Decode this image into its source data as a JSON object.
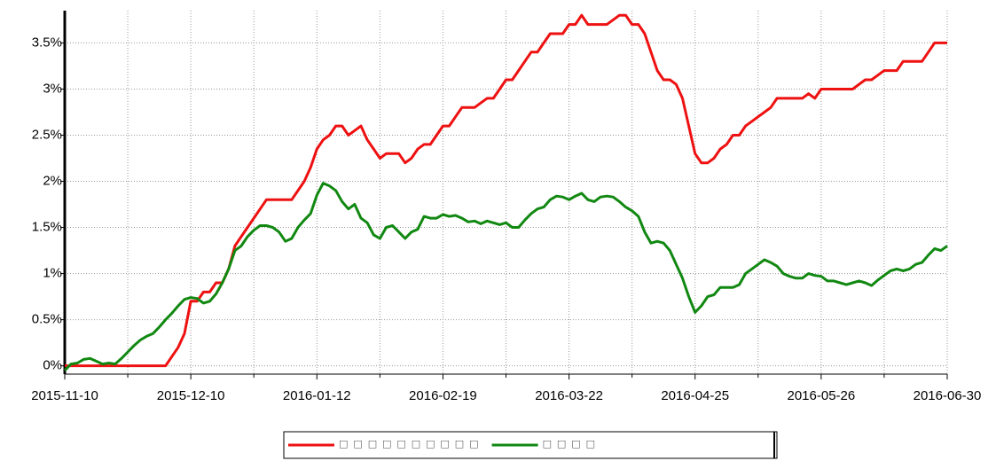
{
  "chart_data": {
    "type": "line",
    "categories": [
      "2015-11-10",
      null,
      null,
      null,
      null,
      null,
      null,
      null,
      null,
      null,
      null,
      null,
      null,
      null,
      null,
      null,
      null,
      null,
      null,
      null,
      "2015-12-10",
      null,
      null,
      null,
      null,
      null,
      null,
      null,
      null,
      null,
      null,
      null,
      null,
      null,
      null,
      null,
      null,
      null,
      null,
      null,
      "2016-01-12",
      null,
      null,
      null,
      null,
      null,
      null,
      null,
      null,
      null,
      null,
      null,
      null,
      null,
      null,
      null,
      null,
      null,
      null,
      null,
      "2016-02-19",
      null,
      null,
      null,
      null,
      null,
      null,
      null,
      null,
      null,
      null,
      null,
      null,
      null,
      null,
      null,
      null,
      null,
      null,
      null,
      "2016-03-22",
      null,
      null,
      null,
      null,
      null,
      null,
      null,
      null,
      null,
      null,
      null,
      null,
      null,
      null,
      null,
      null,
      null,
      null,
      null,
      "2016-04-25",
      null,
      null,
      null,
      null,
      null,
      null,
      null,
      null,
      null,
      null,
      null,
      null,
      null,
      null,
      null,
      null,
      null,
      null,
      null,
      "2016-05-26",
      null,
      null,
      null,
      null,
      null,
      null,
      null,
      null,
      null,
      null,
      null,
      null,
      null,
      null,
      null,
      null,
      null,
      null,
      null,
      "2016-06-30"
    ],
    "series": [
      {
        "name": "□ □ □ □ □ □ □ □ □ □",
        "color": "#ee1111",
        "values": [
          0,
          0,
          0,
          0,
          0,
          0,
          0,
          0,
          0,
          0,
          0,
          0,
          0,
          0,
          0,
          0,
          0,
          0.1,
          0.2,
          0.35,
          0.7,
          0.7,
          0.8,
          0.8,
          0.9,
          0.9,
          1.05,
          1.3,
          1.4,
          1.5,
          1.6,
          1.7,
          1.8,
          1.8,
          1.8,
          1.8,
          1.8,
          1.9,
          2.0,
          2.15,
          2.35,
          2.45,
          2.5,
          2.6,
          2.6,
          2.5,
          2.55,
          2.6,
          2.45,
          2.35,
          2.25,
          2.3,
          2.3,
          2.3,
          2.2,
          2.25,
          2.35,
          2.4,
          2.4,
          2.5,
          2.6,
          2.6,
          2.7,
          2.8,
          2.8,
          2.8,
          2.85,
          2.9,
          2.9,
          3.0,
          3.1,
          3.1,
          3.2,
          3.3,
          3.4,
          3.4,
          3.5,
          3.6,
          3.6,
          3.6,
          3.7,
          3.7,
          3.8,
          3.7,
          3.7,
          3.7,
          3.7,
          3.75,
          3.8,
          3.8,
          3.7,
          3.7,
          3.6,
          3.4,
          3.2,
          3.1,
          3.1,
          3.05,
          2.9,
          2.6,
          2.3,
          2.2,
          2.2,
          2.25,
          2.35,
          2.4,
          2.5,
          2.5,
          2.6,
          2.65,
          2.7,
          2.75,
          2.8,
          2.9,
          2.9,
          2.9,
          2.9,
          2.9,
          2.95,
          2.9,
          3.0,
          3.0,
          3.0,
          3.0,
          3.0,
          3.0,
          3.05,
          3.1,
          3.1,
          3.15,
          3.2,
          3.2,
          3.2,
          3.3,
          3.3,
          3.3,
          3.3,
          3.4,
          3.5,
          3.5,
          3.5
        ]
      },
      {
        "name": "□ □ □ □",
        "color": "#118811",
        "values": [
          -0.05,
          0.02,
          0.03,
          0.07,
          0.08,
          0.05,
          0.02,
          0.03,
          0.02,
          0.08,
          0.15,
          0.22,
          0.28,
          0.32,
          0.35,
          0.42,
          0.5,
          0.57,
          0.65,
          0.72,
          0.74,
          0.73,
          0.68,
          0.7,
          0.78,
          0.9,
          1.05,
          1.25,
          1.3,
          1.4,
          1.47,
          1.52,
          1.52,
          1.5,
          1.45,
          1.35,
          1.38,
          1.5,
          1.58,
          1.65,
          1.85,
          1.98,
          1.95,
          1.9,
          1.78,
          1.7,
          1.75,
          1.6,
          1.55,
          1.42,
          1.38,
          1.5,
          1.52,
          1.45,
          1.38,
          1.45,
          1.48,
          1.62,
          1.6,
          1.6,
          1.64,
          1.62,
          1.63,
          1.6,
          1.56,
          1.57,
          1.54,
          1.57,
          1.55,
          1.53,
          1.55,
          1.5,
          1.5,
          1.58,
          1.65,
          1.7,
          1.72,
          1.8,
          1.84,
          1.83,
          1.8,
          1.84,
          1.87,
          1.8,
          1.78,
          1.83,
          1.84,
          1.83,
          1.78,
          1.72,
          1.68,
          1.62,
          1.45,
          1.33,
          1.35,
          1.33,
          1.25,
          1.1,
          0.95,
          0.75,
          0.58,
          0.65,
          0.75,
          0.77,
          0.85,
          0.85,
          0.85,
          0.88,
          1.0,
          1.05,
          1.1,
          1.15,
          1.12,
          1.08,
          1.0,
          0.97,
          0.95,
          0.95,
          1.0,
          0.98,
          0.97,
          0.92,
          0.92,
          0.9,
          0.88,
          0.9,
          0.92,
          0.9,
          0.87,
          0.93,
          0.98,
          1.03,
          1.05,
          1.03,
          1.05,
          1.1,
          1.12,
          1.2,
          1.27,
          1.25,
          1.3
        ]
      }
    ],
    "ylim": [
      -0.09,
      3.85
    ],
    "yticks": [
      {
        "value": 0,
        "label": "0%"
      },
      {
        "value": 0.5,
        "label": "0.5%"
      },
      {
        "value": 1,
        "label": "1%"
      },
      {
        "value": 1.5,
        "label": "1.5%"
      },
      {
        "value": 2,
        "label": "2%"
      },
      {
        "value": 2.5,
        "label": "2.5%"
      },
      {
        "value": 3,
        "label": "3%"
      },
      {
        "value": 3.5,
        "label": "3.5%"
      }
    ],
    "grid": true,
    "legend": "bottom"
  }
}
